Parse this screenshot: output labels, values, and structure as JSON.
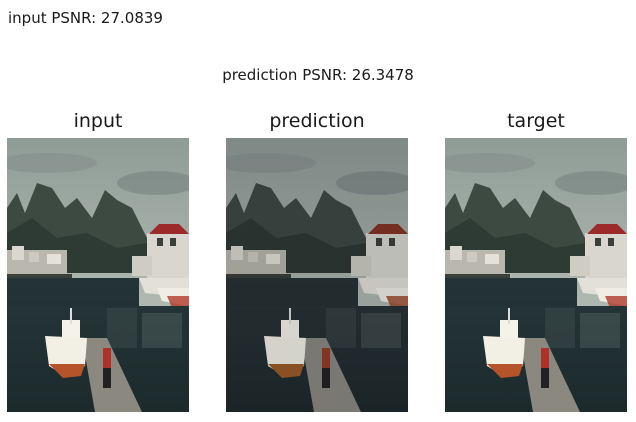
{
  "figure": {
    "input_psnr_text": "input PSNR: 27.0839",
    "prediction_psnr_text": "prediction PSNR: 26.3478"
  },
  "panels": [
    {
      "title": "input"
    },
    {
      "title": "prediction"
    },
    {
      "title": "target"
    }
  ]
}
